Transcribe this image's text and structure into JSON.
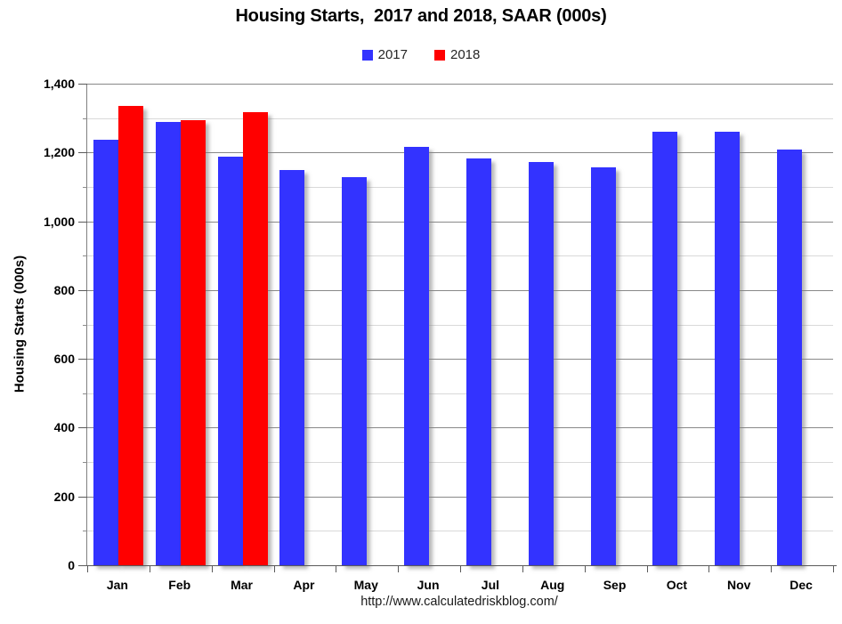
{
  "title": "Housing Starts,  2017 and 2018, SAAR (000s)",
  "legend": {
    "items": [
      {
        "label": "2017",
        "color": "#3333FF"
      },
      {
        "label": "2018",
        "color": "#FF0000"
      }
    ]
  },
  "y_axis": {
    "title": "Housing Starts (000s)"
  },
  "footer_url": "http://www.calculatedriskblog.com/",
  "chart_data": {
    "type": "bar",
    "title": "Housing Starts,  2017 and 2018, SAAR (000s)",
    "xlabel": "",
    "ylabel": "Housing Starts (000s)",
    "categories": [
      "Jan",
      "Feb",
      "Mar",
      "Apr",
      "May",
      "Jun",
      "Jul",
      "Aug",
      "Sep",
      "Oct",
      "Nov",
      "Dec"
    ],
    "series": [
      {
        "name": "2017",
        "color": "#3333FF",
        "values": [
          1236,
          1288,
          1189,
          1150,
          1129,
          1216,
          1182,
          1171,
          1158,
          1260,
          1261,
          1208
        ]
      },
      {
        "name": "2018",
        "color": "#FF0000",
        "values": [
          1336,
          1294,
          1317,
          null,
          null,
          null,
          null,
          null,
          null,
          null,
          null,
          null
        ]
      }
    ],
    "ylim": [
      0,
      1400
    ],
    "ytick_major": 200,
    "ytick_minor": 100,
    "ytick_labels": [
      "0",
      "200",
      "400",
      "600",
      "800",
      "1,000",
      "1,200",
      "1,400"
    ],
    "grid": true,
    "legend_position": "top-center",
    "annotation": "http://www.calculatedriskblog.com/"
  }
}
